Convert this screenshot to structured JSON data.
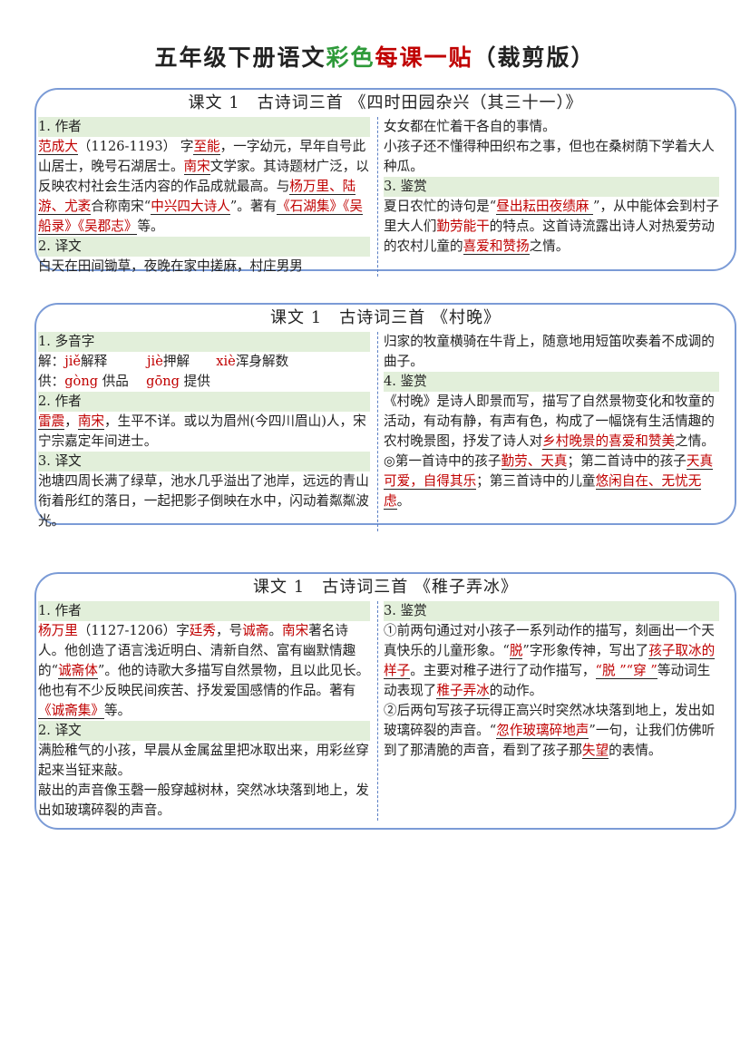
{
  "title": {
    "part1": "五年级下册语文",
    "part2": "彩色",
    "part3": "每课一贴",
    "part4": "（裁剪版）"
  },
  "colors": {
    "accent_red": "#c00000",
    "accent_green": "#2e9a3a",
    "section_bg": "#e2efda",
    "border": "#7b9bd6"
  },
  "cards": [
    {
      "title": "课文 1　古诗词三首 《四时田园杂兴（其三十一）》",
      "left": [
        {
          "h": "1. 作者"
        },
        {
          "p": [
            {
              "t": "范成大",
              "r": 1,
              "u": 1
            },
            {
              "t": "（1126-1193） 字"
            },
            {
              "t": "至能",
              "r": 1,
              "u": 1
            },
            {
              "t": "，一字幼元，早年自号此山居士，晚号石湖居士。"
            },
            {
              "t": "南宋",
              "r": 1,
              "u": 1
            },
            {
              "t": "文学家。其诗题材广泛，以反映农村社会生活内容的作品成就最高。与"
            },
            {
              "t": "杨万里、陆游、尤袤",
              "r": 1,
              "u": 1
            },
            {
              "t": "合称南宋“"
            },
            {
              "t": "中兴四大诗人",
              "r": 1,
              "u": 1
            },
            {
              "t": "”。著有"
            },
            {
              "t": "《石湖集》《吴船录》《吴郡志》",
              "r": 1,
              "u": 1
            },
            {
              "t": "等。"
            }
          ]
        },
        {
          "h": "2. 译文"
        },
        {
          "p": [
            {
              "t": "白天在田间锄草，夜晚在家中搓麻，村庄男男"
            }
          ]
        }
      ],
      "right": [
        {
          "p": [
            {
              "t": "女女都在忙着干各自的事情。"
            }
          ]
        },
        {
          "p": [
            {
              "t": "小孩子还不懂得种田织布之事，但也在桑树荫下学着大人种瓜。"
            }
          ]
        },
        {
          "h": "3. 鉴赏"
        },
        {
          "p": [
            {
              "t": "夏日农忙的诗句是“"
            },
            {
              "t": "昼出耘田夜绩麻 ",
              "r": 1,
              "u": 1
            },
            {
              "t": "”，从中能体会到村子里大人们"
            },
            {
              "t": "勤劳能干",
              "r": 1
            },
            {
              "t": "的特点。这首诗流露出诗人对热爱劳动的农村儿童的"
            },
            {
              "t": "喜爱和赞扬",
              "r": 1,
              "u": 1
            },
            {
              "t": "之情。"
            }
          ]
        }
      ]
    },
    {
      "title": "课文 1　古诗词三首 《村晚》",
      "left": [
        {
          "h": "1. 多音字"
        },
        {
          "p": [
            {
              "t": "解："
            },
            {
              "t": "jiě",
              "r": 1
            },
            {
              "t": "解释　　　"
            },
            {
              "t": "jiè",
              "r": 1
            },
            {
              "t": "押解　　"
            },
            {
              "t": "xiè",
              "r": 1
            },
            {
              "t": "浑身解数"
            }
          ]
        },
        {
          "p": [
            {
              "t": "供："
            },
            {
              "t": "gòng",
              "r": 1
            },
            {
              "t": " 供品　 "
            },
            {
              "t": "gōng",
              "r": 1
            },
            {
              "t": " 提供"
            }
          ]
        },
        {
          "h": "2. 作者"
        },
        {
          "p": [
            {
              "t": "雷震",
              "r": 1,
              "u": 1
            },
            {
              "t": "，"
            },
            {
              "t": "南宋",
              "r": 1,
              "u": 1
            },
            {
              "t": "，生平不详。或以为眉州(今四川眉山)人，宋宁宗嘉定年间进士。"
            }
          ]
        },
        {
          "h": "3. 译文"
        },
        {
          "p": [
            {
              "t": "池塘四周长满了绿草，池水几乎溢出了池岸，远远的青山衔着彤红的落日，一起把影子倒映在水中，闪动着粼粼波光。"
            }
          ]
        }
      ],
      "right": [
        {
          "p": [
            {
              "t": "归家的牧童横骑在牛背上，随意地用短笛吹奏着不成调的曲子。"
            }
          ]
        },
        {
          "h": "4. 鉴赏"
        },
        {
          "p": [
            {
              "t": "《村晚》是诗人即景而写，描写了自然景物变化和牧童的活动，有动有静，有声有色，构成了一幅饶有生活情趣的农村晚景图，抒发了诗人对"
            },
            {
              "t": "乡村晚景的喜爱和赞美",
              "r": 1,
              "u": 1
            },
            {
              "t": "之情。"
            }
          ]
        },
        {
          "p": [
            {
              "t": "◎第一首诗中的孩子"
            },
            {
              "t": "勤劳、天真",
              "r": 1,
              "u": 1
            },
            {
              "t": "；第二首诗中的孩子"
            },
            {
              "t": "天真可爱，自得其乐",
              "r": 1,
              "u": 1
            },
            {
              "t": "；第三首诗中的儿童"
            },
            {
              "t": "悠闲自在、无忧无虑",
              "r": 1,
              "u": 1
            },
            {
              "t": "。"
            }
          ]
        }
      ]
    },
    {
      "title": "课文 1　古诗词三首 《稚子弄冰》",
      "left": [
        {
          "h": "1. 作者"
        },
        {
          "p": [
            {
              "t": "杨万里",
              "r": 1
            },
            {
              "t": "（1127-1206）字"
            },
            {
              "t": "廷秀",
              "r": 1
            },
            {
              "t": "，号"
            },
            {
              "t": "诚斋",
              "r": 1
            },
            {
              "t": "。"
            },
            {
              "t": "南宋",
              "r": 1
            },
            {
              "t": "著名诗人。他创造了语言浅近明白、清新自然、富有幽默情趣的“"
            },
            {
              "t": "诚斋体",
              "r": 1,
              "u": 1
            },
            {
              "t": "”。他的诗歌大多描写自然景物，且以此见长。他也有不少反映民间疾苦、抒发爱国感情的作品。著有"
            },
            {
              "t": "《诚斋集》",
              "r": 1,
              "u": 1
            },
            {
              "t": "等。"
            }
          ]
        },
        {
          "h": "2. 译文"
        },
        {
          "p": [
            {
              "t": "满脸稚气的小孩，早晨从金属盆里把冰取出来，用彩丝穿起来当钲来敲。"
            }
          ]
        },
        {
          "p": [
            {
              "t": "敲出的声音像玉磬一般穿越树林，突然冰块落到地上，发出如玻璃碎裂的声音。"
            }
          ]
        }
      ],
      "right": [
        {
          "h": "3. 鉴赏"
        },
        {
          "p": [
            {
              "t": "①前两句通过对小孩子一系列动作的描写，刻画出一个天真快乐的儿童形象。“"
            },
            {
              "t": "脱",
              "r": 1,
              "u": 1
            },
            {
              "t": "”字形象传神，写出了"
            },
            {
              "t": "孩子取冰的样子",
              "r": 1,
              "u": 1
            },
            {
              "t": "。主要对稚子进行了动作描写，"
            },
            {
              "t": "“脱 ”“穿 ”",
              "r": 1,
              "u": 1
            },
            {
              "t": "等动词生动表现了"
            },
            {
              "t": "稚子弄冰",
              "r": 1,
              "u": 1
            },
            {
              "t": "的动作。"
            }
          ]
        },
        {
          "p": [
            {
              "t": "②后两句写孩子玩得正高兴时突然冰块落到地上，发出如玻璃碎裂的声音。“"
            },
            {
              "t": "忽作玻璃碎地声",
              "r": 1,
              "u": 1
            },
            {
              "t": "”一句，让我们仿佛听到了那清脆的声音，看到了孩子那"
            },
            {
              "t": "失望",
              "r": 1,
              "u": 1
            },
            {
              "t": "的表情。"
            }
          ]
        }
      ]
    }
  ]
}
